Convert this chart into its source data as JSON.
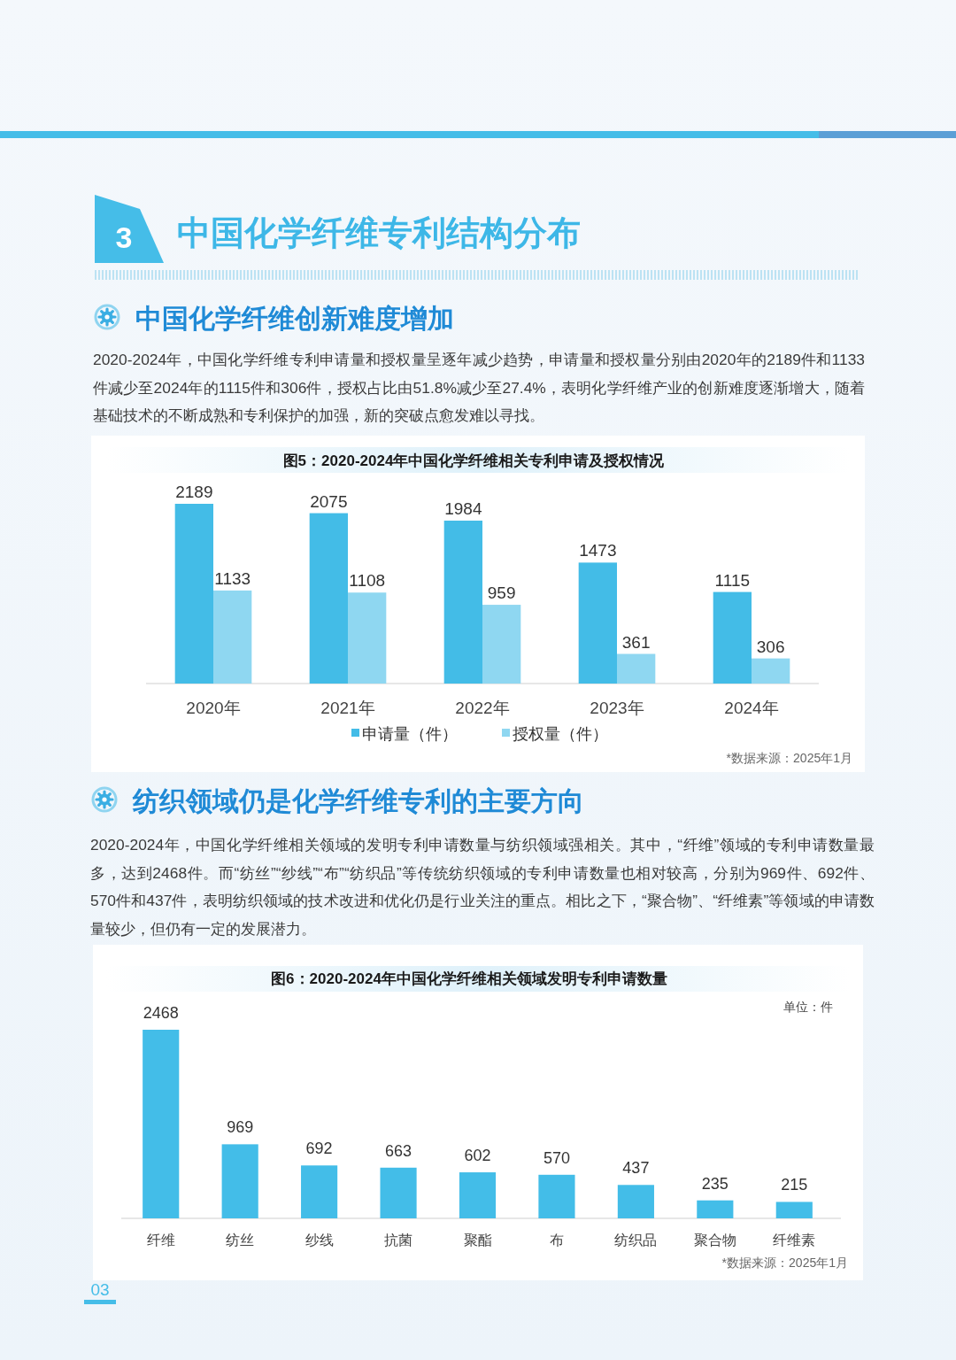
{
  "chart_data": [
    {
      "type": "bar",
      "title": "图5：2020-2024年中国化学纤维相关专利申请及授权情况",
      "categories": [
        "2020年",
        "2021年",
        "2022年",
        "2023年",
        "2024年"
      ],
      "series": [
        {
          "name": "申请量（件）",
          "color": "#43bce7",
          "values": [
            2189,
            2075,
            1984,
            1473,
            1115
          ]
        },
        {
          "name": "授权量（件）",
          "color": "#8fd7f1",
          "values": [
            1133,
            1108,
            959,
            361,
            306
          ]
        }
      ],
      "data_labels": true,
      "legend": "bottom",
      "annotations": [
        "3",
        "中国化学纤维专利结构分布",
        "中国化学纤维创新难度增加",
        "2020-2024年，中国化学纤维专利申请量和授权量呈逐年减少趋势，申请量和授权量分别由2020年的2189件和1133件减少至2024年的1115件和306件，授权占比由51.8%减少至27.4%，表明化学纤维产业的创新难度逐渐增大，随着基础技术的不断成熟和专利保护的加强，新的突破点愈发难以寻找。",
        "*数据来源：2025年1月"
      ]
    },
    {
      "type": "bar",
      "title": "图6：2020-2024年中国化学纤维相关领域发明专利申请数量",
      "categories": [
        "纤维",
        "纺丝",
        "纱线",
        "抗菌",
        "聚酯",
        "布",
        "纺织品",
        "聚合物",
        "纤维素"
      ],
      "values": [
        2468,
        969,
        692,
        663,
        602,
        570,
        437,
        235,
        215
      ],
      "color": "#43bde8",
      "data_labels": true,
      "annotations": [
        "纺织领域仍是化学纤维专利的主要方向",
        "2020-2024年，中国化学纤维相关领域的发明专利申请数量与纺织领域强相关。其中，“纤维”领域的专利申请数量最多，达到2468件。而“纺丝”“纱线”“布”“纺织品”等传统纺织领域的专利申请数量也相对较高，分别为969件、692件、570件和437件，表明纺织领域的技术改进和优化仍是行业关注的重点。相比之下，“聚合物”、“纤维素”等领域的申请数量较少，但仍有一定的发展潜力。",
        "单位：件",
        "*数据来源：2025年1月",
        "03"
      ]
    }
  ]
}
